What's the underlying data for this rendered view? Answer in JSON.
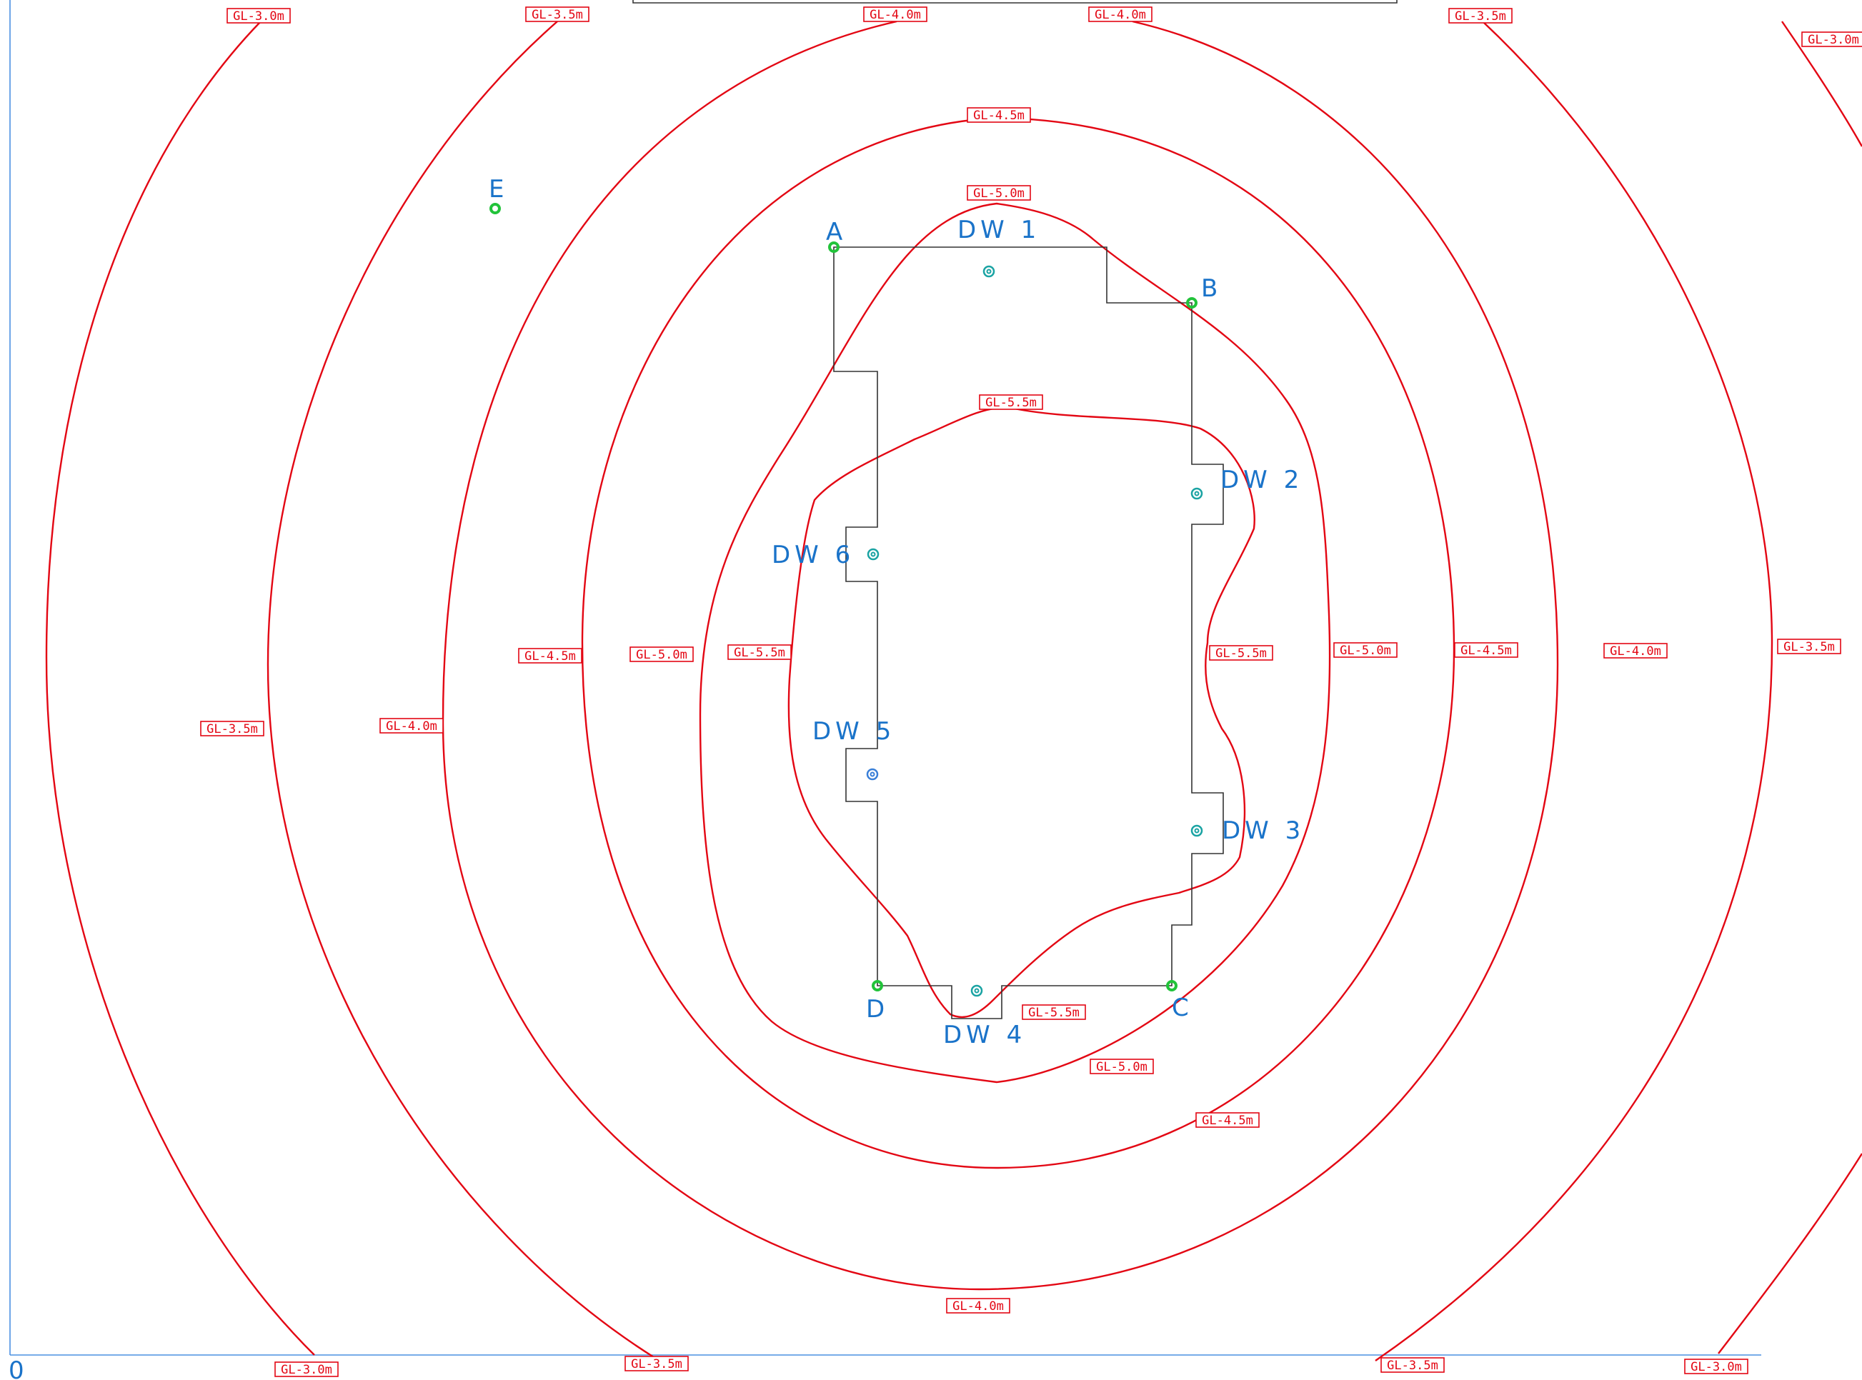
{
  "origin_label": "0",
  "colors": {
    "contour": "#e30613",
    "label_text": "#1a73c9",
    "ref_point": "#22c33a",
    "well": "#1aa3a3",
    "wall": "#333333",
    "frame": "#4a90e2"
  },
  "contours": [
    {
      "id": "c55",
      "name": "GL-5.5m"
    },
    {
      "id": "c50",
      "name": "GL-5.0m"
    },
    {
      "id": "c45",
      "name": "GL-4.5m"
    },
    {
      "id": "c40",
      "name": "GL-4.0m"
    },
    {
      "id": "c35",
      "name": "GL-3.5m"
    },
    {
      "id": "c30",
      "name": "GL-3.0m"
    }
  ],
  "contour_tags": [
    "GL-3.0m",
    "GL-3.5m",
    "GL-4.0m",
    "GL-4.0m",
    "GL-3.5m",
    "GL-3.0m",
    "GL-4.5m",
    "GL-5.0m",
    "GL-5.5m",
    "GL-4.5m",
    "GL-5.0m",
    "GL-5.5m",
    "GL-5.5m",
    "GL-5.0m",
    "GL-4.5m",
    "GL-4.0m",
    "GL-3.5m",
    "GL-3.5m",
    "GL-4.0m",
    "GL-5.5m",
    "GL-5.0m",
    "GL-4.5m",
    "GL-4.0m",
    "GL-3.0m",
    "GL-3.5m",
    "GL-3.5m",
    "GL-3.0m"
  ],
  "reference_points": [
    {
      "label": "A"
    },
    {
      "label": "B"
    },
    {
      "label": "C"
    },
    {
      "label": "D"
    },
    {
      "label": "E"
    }
  ],
  "wells": [
    {
      "label": "DW 1"
    },
    {
      "label": "DW 2"
    },
    {
      "label": "DW 3"
    },
    {
      "label": "DW 4"
    },
    {
      "label": "DW 5"
    },
    {
      "label": "DW 6"
    }
  ]
}
